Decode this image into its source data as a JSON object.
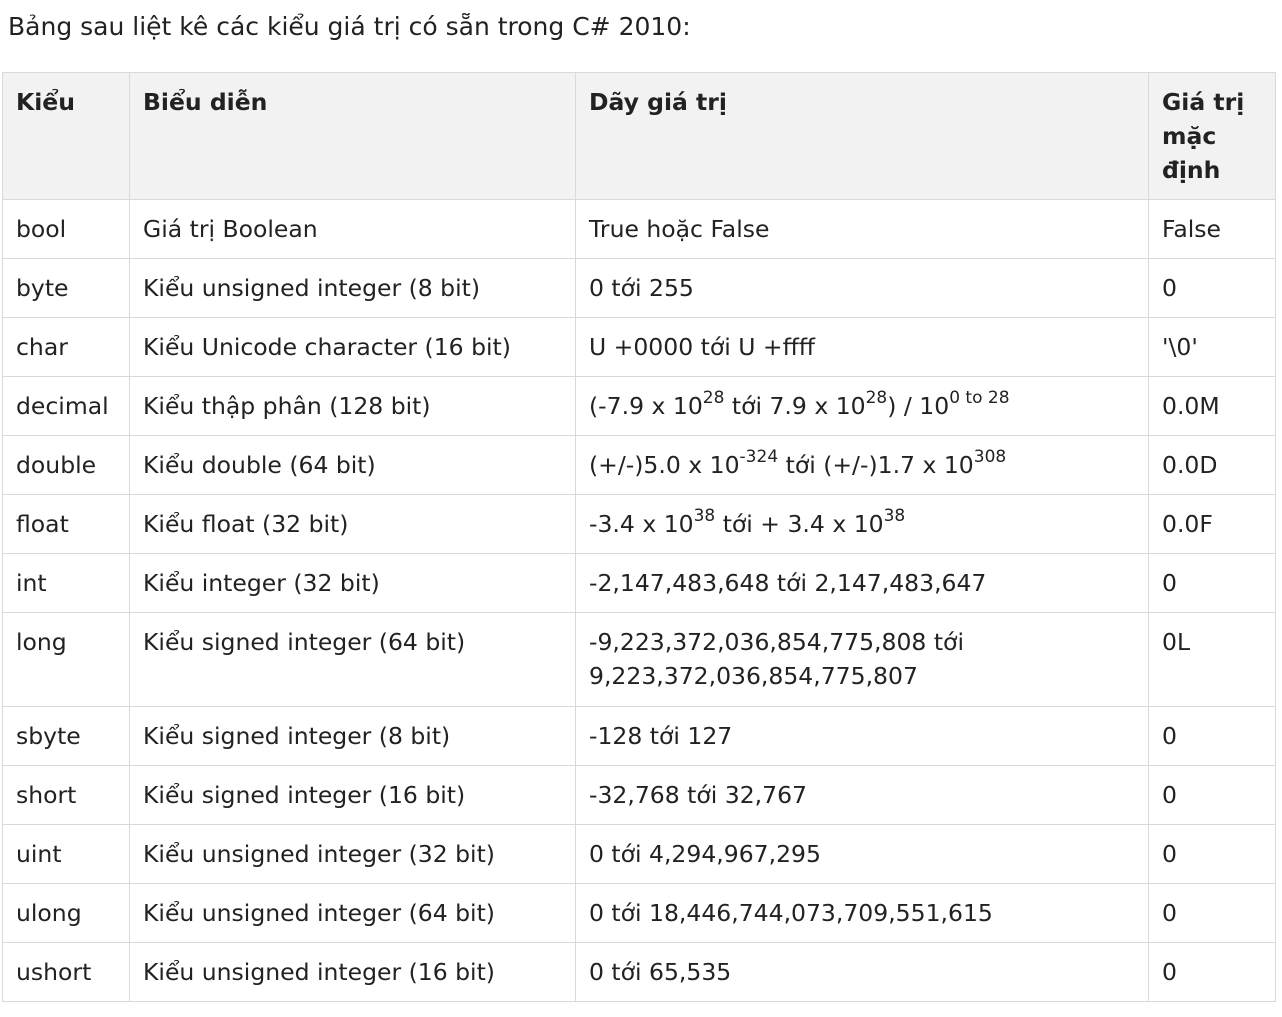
{
  "intro": "Bảng sau liệt kê các kiểu giá trị có sẵn trong C# 2010:",
  "table": {
    "headers": [
      "Kiểu",
      "Biểu diễn",
      "Dãy giá trị",
      "Giá trị mặc định"
    ],
    "rows": [
      {
        "type": "bool",
        "desc": "Giá trị Boolean",
        "range": "True hoặc False",
        "default": "False"
      },
      {
        "type": "byte",
        "desc": "Kiểu unsigned integer (8 bit)",
        "range": "0 tới 255",
        "default": "0"
      },
      {
        "type": "char",
        "desc": "Kiểu Unicode character (16 bit)",
        "range": "U +0000 tới U +ffff",
        "default": "'\\0'"
      },
      {
        "type": "decimal",
        "desc": "Kiểu thập phân (128 bit)",
        "range_parts": [
          "(-7.9 x 10",
          "28",
          " tới 7.9 x 10",
          "28",
          ") / 10",
          "0 to 28"
        ],
        "default": "0.0M"
      },
      {
        "type": "double",
        "desc": "Kiểu double (64 bit)",
        "range_parts": [
          "(+/-)5.0 x 10",
          "-324",
          " tới (+/-)1.7 x 10",
          "308"
        ],
        "default": "0.0D"
      },
      {
        "type": "float",
        "desc": "Kiểu float (32 bit)",
        "range_parts": [
          "-3.4 x 10",
          "38",
          " tới + 3.4 x 10",
          "38"
        ],
        "default": "0.0F"
      },
      {
        "type": "int",
        "desc": "Kiểu integer (32 bit)",
        "range": "-2,147,483,648 tới 2,147,483,647",
        "default": "0"
      },
      {
        "type": "long",
        "desc": "Kiểu signed integer (64 bit)",
        "range_lines": [
          "-9,223,372,036,854,775,808 tới",
          "9,223,372,036,854,775,807"
        ],
        "default": "0L"
      },
      {
        "type": "sbyte",
        "desc": "Kiểu signed integer (8 bit)",
        "range": "-128 tới 127",
        "default": "0"
      },
      {
        "type": "short",
        "desc": "Kiểu signed integer (16 bit)",
        "range": "-32,768 tới 32,767",
        "default": "0"
      },
      {
        "type": "uint",
        "desc": "Kiểu unsigned integer (32 bit)",
        "range": "0 tới 4,294,967,295",
        "default": "0"
      },
      {
        "type": "ulong",
        "desc": "Kiểu unsigned integer (64 bit)",
        "range": "0 tới 18,446,744,073,709,551,615",
        "default": "0"
      },
      {
        "type": "ushort",
        "desc": "Kiểu unsigned integer (16 bit)",
        "range": "0 tới 65,535",
        "default": "0"
      }
    ]
  }
}
